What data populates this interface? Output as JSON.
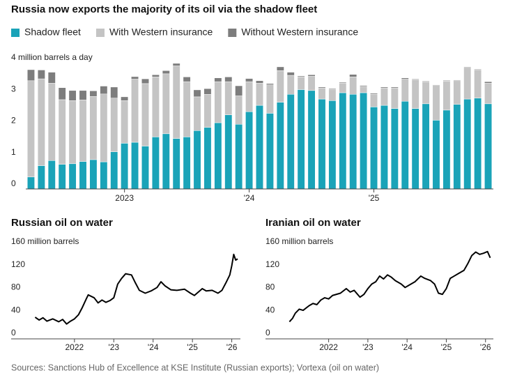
{
  "chart_data": [
    {
      "type": "bar",
      "stacked": true,
      "title": "Russia now exports the majority of its oil via the shadow fleet",
      "legend": "top-left",
      "grid": false,
      "categories": [
        null,
        null,
        null,
        null,
        null,
        null,
        null,
        null,
        null,
        "2023",
        null,
        null,
        null,
        null,
        null,
        null,
        null,
        null,
        null,
        null,
        null,
        "'24",
        null,
        null,
        null,
        null,
        null,
        null,
        null,
        null,
        null,
        null,
        null,
        "'25",
        null,
        null,
        null,
        null,
        null,
        null,
        null,
        null,
        null,
        null,
        null
      ],
      "ylim": [
        0,
        4
      ],
      "yticks": [
        0,
        1,
        2,
        3,
        {
          "value": 4,
          "label": "4 million barrels a day"
        }
      ],
      "series": [
        {
          "name": "Shadow fleet",
          "color": "#1aa3b8",
          "values": [
            0.38,
            0.74,
            0.9,
            0.78,
            0.8,
            0.87,
            0.93,
            0.86,
            1.18,
            1.45,
            1.48,
            1.36,
            1.65,
            1.75,
            1.6,
            1.65,
            1.85,
            1.95,
            2.1,
            2.35,
            2.05,
            2.45,
            2.65,
            2.4,
            2.75,
            3.0,
            3.15,
            3.12,
            2.85,
            2.8,
            3.05,
            3.0,
            3.05,
            2.6,
            2.65,
            2.55,
            2.78,
            2.55,
            2.7,
            2.18,
            2.5,
            2.68,
            2.85,
            2.88,
            2.7
          ]
        },
        {
          "name": "With Western insurance",
          "color": "#c4c4c4",
          "values": [
            3.05,
            2.75,
            2.45,
            2.05,
            2.0,
            1.95,
            2.0,
            2.15,
            1.7,
            1.35,
            2.0,
            1.98,
            1.9,
            1.9,
            2.3,
            1.75,
            1.07,
            1.05,
            1.3,
            1.05,
            0.9,
            0.95,
            0.7,
            0.9,
            1.0,
            0.6,
            0.4,
            0.45,
            0.35,
            0.35,
            0.3,
            0.55,
            0.2,
            0.4,
            0.55,
            0.65,
            0.7,
            0.92,
            0.7,
            1.1,
            0.92,
            0.75,
            1.0,
            0.9,
            0.65
          ]
        },
        {
          "name": "Without Western insurance",
          "color": "#7d7d7d",
          "values": [
            0.35,
            0.28,
            0.35,
            0.38,
            0.32,
            0.3,
            0.18,
            0.25,
            0.35,
            0.12,
            0.08,
            0.15,
            0.07,
            0.1,
            0.08,
            0.15,
            0.22,
            0.18,
            0.12,
            0.15,
            0.32,
            0.1,
            0.08,
            0.04,
            0.12,
            0.1,
            0.03,
            0.05,
            0.03,
            0.03,
            0.03,
            0.08,
            0.03,
            0.03,
            0.03,
            0.03,
            0.04,
            0.02,
            0.02,
            0.02,
            0.02,
            0.02,
            0.02,
            0.02,
            0.05
          ]
        }
      ]
    },
    {
      "type": "line",
      "title": "Russian oil on water",
      "grid": false,
      "xlim": [
        2020.39,
        2026.22
      ],
      "ylim": [
        0,
        160
      ],
      "xticks": [
        {
          "value": 2022,
          "label": "2022"
        },
        {
          "value": 2023,
          "label": "'23"
        },
        {
          "value": 2024,
          "label": "'24"
        },
        {
          "value": 2025,
          "label": "'25"
        },
        {
          "value": 2026,
          "label": "'26"
        }
      ],
      "yticks": [
        0,
        40,
        80,
        120,
        {
          "value": 160,
          "label": "160 million barrels"
        }
      ],
      "series": [
        {
          "name": "Russian oil on water",
          "color": "#000000",
          "x": [
            2021.0,
            2021.1,
            2021.2,
            2021.3,
            2021.45,
            2021.6,
            2021.7,
            2021.8,
            2021.9,
            2022.0,
            2022.1,
            2022.2,
            2022.3,
            2022.35,
            2022.5,
            2022.6,
            2022.7,
            2022.8,
            2022.9,
            2023.0,
            2023.1,
            2023.2,
            2023.3,
            2023.45,
            2023.55,
            2023.65,
            2023.8,
            2023.95,
            2024.1,
            2024.2,
            2024.3,
            2024.45,
            2024.6,
            2024.8,
            2024.95,
            2025.05,
            2025.15,
            2025.25,
            2025.35,
            2025.5,
            2025.65,
            2025.75,
            2025.85,
            2025.95,
            2026.0,
            2026.05,
            2026.1,
            2026.15
          ],
          "values": [
            38,
            33,
            37,
            31,
            35,
            30,
            34,
            26,
            31,
            35,
            42,
            55,
            70,
            77,
            72,
            63,
            68,
            64,
            67,
            72,
            96,
            106,
            114,
            112,
            98,
            85,
            80,
            84,
            90,
            100,
            93,
            86,
            85,
            87,
            80,
            76,
            82,
            88,
            84,
            85,
            80,
            85,
            98,
            112,
            128,
            148,
            138,
            140
          ]
        }
      ]
    },
    {
      "type": "line",
      "title": "Iranian oil on water",
      "grid": false,
      "xlim": [
        2020.39,
        2026.2
      ],
      "ylim": [
        0,
        160
      ],
      "xticks": [
        {
          "value": 2022,
          "label": "2022"
        },
        {
          "value": 2023,
          "label": "'23"
        },
        {
          "value": 2024,
          "label": "'24"
        },
        {
          "value": 2025,
          "label": "'25"
        },
        {
          "value": 2026,
          "label": "'26"
        }
      ],
      "yticks": [
        0,
        40,
        80,
        120,
        {
          "value": 160,
          "label": "160 million barrels"
        }
      ],
      "series": [
        {
          "name": "Iranian oil on water",
          "color": "#000000",
          "x": [
            2021.0,
            2021.08,
            2021.15,
            2021.25,
            2021.35,
            2021.5,
            2021.6,
            2021.7,
            2021.8,
            2021.9,
            2022.0,
            2022.1,
            2022.2,
            2022.3,
            2022.45,
            2022.55,
            2022.65,
            2022.8,
            2022.9,
            2023.0,
            2023.1,
            2023.2,
            2023.3,
            2023.4,
            2023.5,
            2023.6,
            2023.7,
            2023.85,
            2023.95,
            2024.05,
            2024.2,
            2024.35,
            2024.45,
            2024.6,
            2024.7,
            2024.8,
            2024.9,
            2025.0,
            2025.1,
            2025.2,
            2025.3,
            2025.45,
            2025.55,
            2025.65,
            2025.75,
            2025.85,
            2025.95,
            2026.05,
            2026.12
          ],
          "values": [
            30,
            36,
            45,
            52,
            50,
            58,
            62,
            60,
            68,
            72,
            70,
            76,
            78,
            80,
            88,
            82,
            85,
            73,
            78,
            88,
            96,
            100,
            110,
            105,
            112,
            108,
            102,
            96,
            90,
            94,
            100,
            110,
            106,
            102,
            96,
            80,
            78,
            88,
            106,
            110,
            114,
            120,
            132,
            146,
            152,
            148,
            150,
            153,
            142
          ]
        }
      ]
    }
  ],
  "source": "Sources: Sanctions Hub of Excellence at KSE Institute (Russian exports); Vortexa (oil on water)"
}
